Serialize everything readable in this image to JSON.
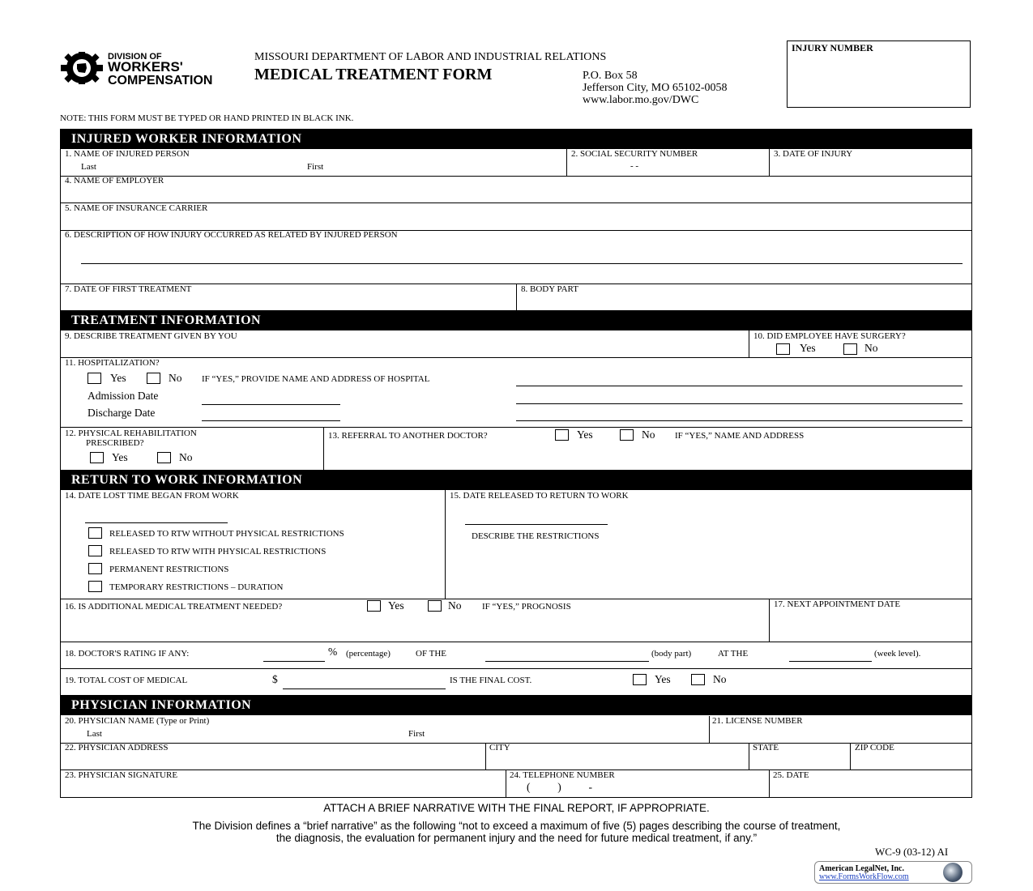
{
  "header": {
    "logo_line1": "DIVISION OF",
    "logo_line2": "WORKERS'",
    "logo_line3": "COMPENSATION",
    "department": "MISSOURI DEPARTMENT OF LABOR AND INDUSTRIAL RELATIONS",
    "title": "MEDICAL TREATMENT FORM",
    "address1": "P.O. Box 58",
    "address2": "Jefferson City, MO 65102-0058",
    "website": "www.labor.mo.gov/DWC",
    "injury_number_label": "INJURY NUMBER",
    "note": "NOTE:  THIS FORM MUST BE TYPED OR HAND PRINTED IN BLACK INK."
  },
  "sections": {
    "injured": "INJURED WORKER INFORMATION",
    "treatment": "TREATMENT INFORMATION",
    "rtw": "RETURN TO WORK INFORMATION",
    "physician": "PHYSICIAN INFORMATION"
  },
  "fields": {
    "f1": "1. NAME OF INJURED PERSON",
    "last": "Last",
    "first": "First",
    "f2": "2. SOCIAL SECURITY NUMBER",
    "ssn_dashes": "-          -",
    "f3": "3. DATE OF INJURY",
    "f4": "4. NAME OF EMPLOYER",
    "f5": "5. NAME OF INSURANCE CARRIER",
    "f6": "6. DESCRIPTION OF HOW INJURY OCCURRED AS RELATED BY INJURED PERSON",
    "f7": "7. DATE OF FIRST TREATMENT",
    "f8": "8. BODY PART",
    "f9": "9. DESCRIBE TREATMENT GIVEN BY YOU",
    "f10": "10. DID EMPLOYEE HAVE SURGERY?",
    "f11": "11. HOSPITALIZATION?",
    "f11_if": "IF “YES,” PROVIDE NAME AND ADDRESS OF HOSPITAL",
    "admission": "Admission Date",
    "discharge": "Discharge Date",
    "f12a": "12. PHYSICAL REHABILITATION",
    "f12b": "PRESCRIBED?",
    "f13": "13. REFERRAL TO ANOTHER DOCTOR?",
    "f13_if": "IF “YES,” NAME AND ADDRESS",
    "f14": "14. DATE LOST TIME BEGAN FROM WORK",
    "f15": "15. DATE RELEASED TO RETURN TO WORK",
    "describe_restrictions": "DESCRIBE THE RESTRICTIONS",
    "rtw_options": [
      "RELEASED TO RTW WITHOUT PHYSICAL RESTRICTIONS",
      "RELEASED TO RTW WITH PHYSICAL RESTRICTIONS",
      "PERMANENT RESTRICTIONS",
      "TEMPORARY RESTRICTIONS – DURATION"
    ],
    "f16": "16. IS ADDITIONAL MEDICAL TREATMENT NEEDED?",
    "f16_if": "IF “YES,” PROGNOSIS",
    "f17": "17. NEXT APPOINTMENT DATE",
    "f18": "18. DOCTOR'S RATING IF ANY:",
    "pct": "%",
    "percentage": "(percentage)",
    "of_the": "OF THE",
    "body_part": "(body part)",
    "at_the": "AT THE",
    "week_level": "(week level).",
    "f19": "19. TOTAL COST OF MEDICAL",
    "dollar": "$",
    "final_cost": "IS THE FINAL COST.",
    "f20": "20. PHYSICIAN NAME (Type or Print)",
    "f21": "21. LICENSE NUMBER",
    "f22": "22. PHYSICIAN ADDRESS",
    "city": "CITY",
    "state": "STATE",
    "zip": "ZIP CODE",
    "f23": "23. PHYSICIAN SIGNATURE",
    "f24": "24. TELEPHONE NUMBER",
    "phone_fmt": "(          )          -",
    "f25": "25. DATE",
    "yes": "Yes",
    "no": "No"
  },
  "footer": {
    "attach": "ATTACH A BRIEF NARRATIVE WITH THE FINAL REPORT, IF APPROPRIATE.",
    "def1": "The Division defines a “brief narrative” as the following “not to exceed a maximum of five (5) pages describing the course of treatment,",
    "def2": "the diagnosis, the evaluation for permanent injury and the need for future medical treatment, if any.”",
    "form_id": "WC-9 (03-12)  AI",
    "vendor": "American LegalNet, Inc.",
    "vendor_url": "www.FormsWorkFlow.com"
  }
}
